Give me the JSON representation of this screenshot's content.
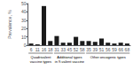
{
  "chart_data": {
    "type": "bar",
    "categories": [
      "6",
      "11",
      "16",
      "18",
      "31",
      "33",
      "45",
      "52",
      "58",
      "35",
      "39",
      "51",
      "56",
      "59",
      "66",
      "68"
    ],
    "values": [
      2,
      1,
      47,
      5,
      11,
      3,
      3,
      10,
      5,
      5,
      4,
      8,
      3,
      2,
      3,
      2
    ],
    "color": "#1a1a1a",
    "ylabel": "Prevalence, %",
    "ylim": [
      0,
      50
    ],
    "yticks": [
      0,
      10,
      20,
      30,
      40,
      50
    ],
    "grid": false,
    "annotations": [
      {
        "text": "Quadrivalent\nvaccine types",
        "from": "6",
        "to": "18"
      },
      {
        "text": "Additional types\nin 9-valent vaccine",
        "from": "31",
        "to": "58"
      },
      {
        "text": "Other oncogenic types",
        "from": "35",
        "to": "68"
      }
    ]
  }
}
